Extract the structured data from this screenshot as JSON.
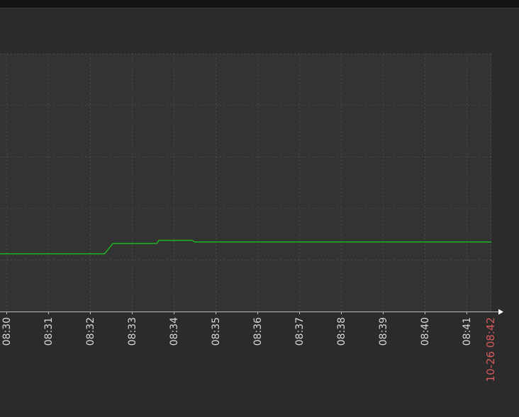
{
  "chart_data": {
    "type": "line",
    "xlim_minutes": [
      "08:29.85",
      "08:41.6"
    ],
    "ylim": [
      0,
      5
    ],
    "grid": true,
    "x_tick_labels": [
      "08:30",
      "08:31",
      "08:32",
      "08:33",
      "08:34",
      "08:35",
      "08:36",
      "08:37",
      "08:38",
      "08:39",
      "08:40",
      "08:41"
    ],
    "end_label": "10-26 08:42",
    "colors": {
      "background": "#2b2b2b",
      "plot_area": "#333333",
      "grid": "#4a4a4a",
      "line": "#22b422",
      "axis": "#bdbdbd",
      "end_label": "#d45c5c"
    },
    "series": [
      {
        "points": [
          [
            "08:29.85",
            1.12
          ],
          [
            "08:32.35",
            1.12
          ],
          [
            "08:32.45",
            1.22
          ],
          [
            "08:32.55",
            1.32
          ],
          [
            "08:33.6",
            1.32
          ],
          [
            "08:33.65",
            1.38
          ],
          [
            "08:34.45",
            1.38
          ],
          [
            "08:34.5",
            1.35
          ],
          [
            "08:41.6",
            1.35
          ]
        ]
      }
    ]
  }
}
